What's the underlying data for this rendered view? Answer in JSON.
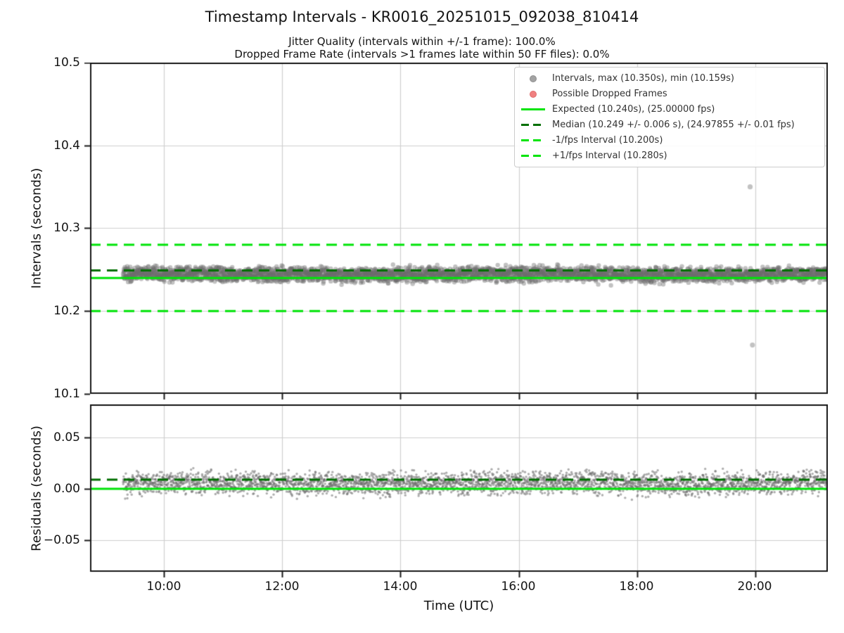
{
  "header": {
    "title": "Timestamp Intervals - KR0016_20251015_092038_810414",
    "subtitle1": "Jitter Quality (intervals within +/-1 frame): 100.0%",
    "subtitle2": "Dropped Frame Rate (intervals >1 frames late within 50 FF files): 0.0%"
  },
  "colors": {
    "lime": "#00e408",
    "dark_green": "#006f00",
    "scatter_gray": "#6e6e6e",
    "legend_red": "#f08080",
    "grid": "#cfcfcf",
    "spine": "#1a1a1a"
  },
  "legend": {
    "items": [
      {
        "marker": "gray-dot",
        "label": "Intervals, max (10.350s), min (10.159s)"
      },
      {
        "marker": "red-dot",
        "label": "Possible Dropped Frames"
      },
      {
        "marker": "solid-lime-line",
        "label": "Expected (10.240s), (25.00000 fps)"
      },
      {
        "marker": "dashed-darkgreen-line",
        "label": "Median (10.249 +/- 0.006 s), (24.97855 +/- 0.01 fps)"
      },
      {
        "marker": "dashed-lime-line",
        "label": "-1/fps Interval (10.200s)"
      },
      {
        "marker": "dashed-lime-line",
        "label": "+1/fps Interval (10.280s)"
      }
    ]
  },
  "axes": {
    "top": {
      "ylabel": "Intervals (seconds)",
      "yticks": [
        "10.5",
        "10.4",
        "10.3",
        "10.2",
        "10.1"
      ]
    },
    "bottom": {
      "ylabel": "Residuals (seconds)",
      "yticks": [
        "0.05",
        "0.00",
        "−0.05"
      ]
    },
    "x": {
      "label": "Time (UTC)",
      "ticks": [
        "10:00",
        "12:00",
        "14:00",
        "16:00",
        "18:00",
        "20:00"
      ]
    }
  },
  "chart_data": [
    {
      "type": "scatter",
      "title": "Timestamp Intervals - KR0016_20251015_092038_810414",
      "xlabel": "Time (UTC)",
      "ylabel": "Intervals (seconds)",
      "ylim": [
        10.1,
        10.5
      ],
      "ytick_values": [
        10.5,
        10.4,
        10.3,
        10.2,
        10.1
      ],
      "xlim_hours": [
        8.751,
        21.224
      ],
      "xtick_hours": [
        10,
        12,
        14,
        16,
        18,
        20
      ],
      "grid": true,
      "legend_position": "upper right",
      "series": [
        {
          "name": "Intervals",
          "n_points": 3500,
          "t_start_hours": 9.31,
          "t_end_hours": 21.224,
          "band_center_s": 10.2443,
          "band_halfwidth_s": 0.013,
          "alpha": 0.42,
          "marker_diameter_px": 6.4,
          "max_s": 10.35,
          "min_s": 10.159,
          "median_s": 10.249
        }
      ],
      "outliers": [
        {
          "t_hours": 19.91,
          "value_s": 10.35
        },
        {
          "t_hours": 19.95,
          "value_s": 10.159
        }
      ],
      "ref_lines": [
        {
          "name": "expected",
          "value_s": 10.24,
          "fps": 25.0,
          "style": "solid",
          "color": "#00e408",
          "lw": 3
        },
        {
          "name": "median",
          "value_s": 10.249,
          "fps": 24.97855,
          "style": "dashed",
          "color": "#006f00",
          "lw": 3
        },
        {
          "name": "minus_1fps",
          "value_s": 10.2,
          "style": "dashed",
          "color": "#00e408",
          "lw": 3
        },
        {
          "name": "plus_1fps",
          "value_s": 10.28,
          "style": "dashed",
          "color": "#00e408",
          "lw": 3
        }
      ]
    },
    {
      "type": "scatter",
      "xlabel": "Time (UTC)",
      "ylabel": "Residuals (seconds)",
      "ylim": [
        -0.0808,
        0.0822
      ],
      "ytick_values": [
        0.05,
        0.0,
        -0.05
      ],
      "xlim_hours": [
        8.751,
        21.224
      ],
      "xtick_hours": [
        10,
        12,
        14,
        16,
        18,
        20
      ],
      "grid": true,
      "series": [
        {
          "name": "Residuals",
          "n_points": 3500,
          "t_start_hours": 9.31,
          "t_end_hours": 21.224,
          "band_center_s": 0.0055,
          "band_halfwidth_s": 0.016,
          "alpha": 0.55,
          "marker_diameter_px": 3.4,
          "median_s": 0.009
        }
      ],
      "ref_lines": [
        {
          "name": "zero",
          "value_s": 0.0,
          "style": "solid",
          "color": "#00e408",
          "lw": 3
        },
        {
          "name": "median_residual",
          "value_s": 0.009,
          "style": "dashed",
          "color": "#006f00",
          "lw": 3
        }
      ]
    }
  ]
}
